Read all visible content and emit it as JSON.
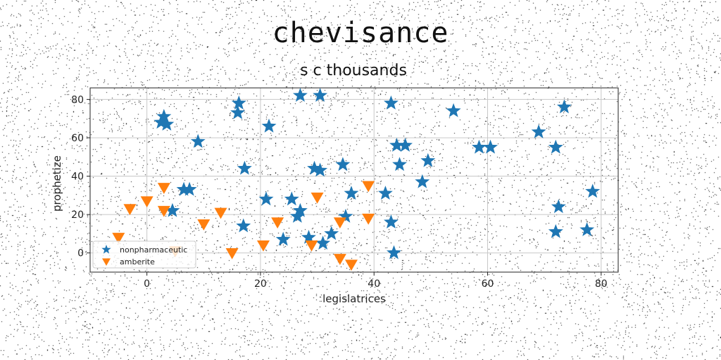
{
  "chart_data": {
    "type": "scatter",
    "suptitle": "chevisance",
    "title": "s c thousands",
    "xlabel": "legislatrices",
    "ylabel": "prophetize",
    "xlim": [
      -10,
      83
    ],
    "ylim": [
      -10,
      86
    ],
    "xticks": [
      0,
      20,
      40,
      60,
      80
    ],
    "yticks": [
      0,
      20,
      40,
      60,
      80
    ],
    "grid": true,
    "legend_position": "lower-left",
    "series": [
      {
        "name": "nonpharmaceutic",
        "marker": "star",
        "color": "#1f77b4",
        "points": [
          [
            2.5,
            68
          ],
          [
            3,
            71
          ],
          [
            3.5,
            67
          ],
          [
            4.5,
            22
          ],
          [
            6.5,
            33
          ],
          [
            7.5,
            33
          ],
          [
            9,
            58
          ],
          [
            16,
            73
          ],
          [
            16.2,
            78
          ],
          [
            17,
            14
          ],
          [
            17.2,
            44
          ],
          [
            21,
            28
          ],
          [
            21.5,
            66
          ],
          [
            24,
            7
          ],
          [
            25.5,
            28
          ],
          [
            26.5,
            19
          ],
          [
            27,
            22
          ],
          [
            27,
            82
          ],
          [
            28.5,
            8
          ],
          [
            29.5,
            44
          ],
          [
            30.5,
            43
          ],
          [
            30.5,
            82
          ],
          [
            31,
            5
          ],
          [
            32.5,
            10
          ],
          [
            34.5,
            46
          ],
          [
            35,
            19
          ],
          [
            36,
            31
          ],
          [
            42,
            31
          ],
          [
            43,
            16
          ],
          [
            43,
            78
          ],
          [
            43.5,
            0
          ],
          [
            44,
            56
          ],
          [
            44.5,
            46
          ],
          [
            45.5,
            56
          ],
          [
            48.5,
            37
          ],
          [
            49.5,
            48
          ],
          [
            54,
            74
          ],
          [
            58.5,
            55
          ],
          [
            60.5,
            55
          ],
          [
            69,
            63
          ],
          [
            72,
            55
          ],
          [
            72,
            11
          ],
          [
            72.5,
            24
          ],
          [
            73.5,
            76
          ],
          [
            77.5,
            12
          ],
          [
            78.5,
            32
          ]
        ]
      },
      {
        "name": "amberite",
        "marker": "triangle_down",
        "color": "#ff7f0e",
        "points": [
          [
            -5,
            8
          ],
          [
            -3,
            23
          ],
          [
            0,
            27
          ],
          [
            3,
            34
          ],
          [
            3,
            22
          ],
          [
            5,
            1
          ],
          [
            10,
            15
          ],
          [
            13,
            21
          ],
          [
            15,
            0
          ],
          [
            20.5,
            4
          ],
          [
            23,
            16
          ],
          [
            29,
            4
          ],
          [
            30,
            29
          ],
          [
            34,
            16
          ],
          [
            34,
            -3
          ],
          [
            36,
            -6
          ],
          [
            39,
            35
          ],
          [
            39,
            18
          ]
        ]
      }
    ]
  }
}
